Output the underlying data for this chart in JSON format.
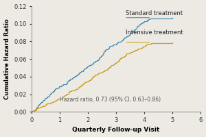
{
  "xlabel": "Quarterly Follow-up Visit",
  "ylabel": "Cumulative Hazard Ratio",
  "xlim": [
    0,
    6
  ],
  "ylim": [
    0.0,
    0.12
  ],
  "yticks": [
    0.0,
    0.02,
    0.04,
    0.06,
    0.08,
    0.1,
    0.12
  ],
  "xticks": [
    0,
    1,
    2,
    3,
    4,
    5,
    6
  ],
  "standard_color": "#4a8db5",
  "intensive_color": "#c9a227",
  "annotation": "Hazard ratio, 0.73 (95% CI, 0.63–0.86)",
  "label_standard": "Standard treatment",
  "label_intensive": "Intensive treatment",
  "background_color": "#edeae4",
  "std_x": [
    0.0,
    0.15,
    0.25,
    0.35,
    0.45,
    0.55,
    0.65,
    0.75,
    0.85,
    0.95,
    1.05,
    1.15,
    1.25,
    1.35,
    1.45,
    1.55,
    1.65,
    1.75,
    1.85,
    1.95,
    2.05,
    2.15,
    2.25,
    2.35,
    2.45,
    2.55,
    2.65,
    2.75,
    2.85,
    2.95,
    3.05,
    3.15,
    3.25,
    3.35,
    3.45,
    3.55,
    3.65,
    3.75,
    3.85,
    3.95,
    4.05,
    4.15,
    4.25,
    5.0
  ],
  "std_y": [
    0.0,
    0.003,
    0.006,
    0.009,
    0.013,
    0.016,
    0.019,
    0.022,
    0.026,
    0.029,
    0.032,
    0.036,
    0.039,
    0.042,
    0.045,
    0.048,
    0.051,
    0.055,
    0.058,
    0.061,
    0.065,
    0.068,
    0.071,
    0.075,
    0.078,
    0.081,
    0.085,
    0.088,
    0.091,
    0.094,
    0.097,
    0.099,
    0.101,
    0.103,
    0.104,
    0.105,
    0.1055,
    0.106,
    0.1062,
    0.1065,
    0.1067,
    0.1068,
    0.1069,
    0.1069
  ],
  "int_x": [
    0.0,
    0.15,
    0.25,
    0.35,
    0.45,
    0.55,
    0.65,
    0.75,
    0.85,
    0.95,
    1.05,
    1.15,
    1.25,
    1.35,
    1.45,
    1.55,
    1.65,
    1.75,
    1.85,
    1.95,
    2.05,
    2.15,
    2.25,
    2.35,
    2.45,
    2.55,
    2.65,
    2.75,
    2.85,
    2.95,
    3.05,
    3.15,
    3.25,
    3.35,
    3.45,
    3.55,
    3.65,
    3.75,
    3.85,
    3.95,
    4.05,
    4.15,
    4.25,
    5.0
  ],
  "int_y": [
    0.0,
    0.003,
    0.006,
    0.008,
    0.011,
    0.014,
    0.016,
    0.019,
    0.022,
    0.025,
    0.027,
    0.03,
    0.032,
    0.035,
    0.037,
    0.04,
    0.042,
    0.045,
    0.047,
    0.05,
    0.053,
    0.055,
    0.058,
    0.06,
    0.063,
    0.065,
    0.067,
    0.069,
    0.071,
    0.073,
    0.075,
    0.076,
    0.077,
    0.0775,
    0.078,
    0.0782,
    0.0783,
    0.0784,
    0.0785,
    0.0786,
    0.0787,
    0.0788,
    0.0789,
    0.0789
  ]
}
